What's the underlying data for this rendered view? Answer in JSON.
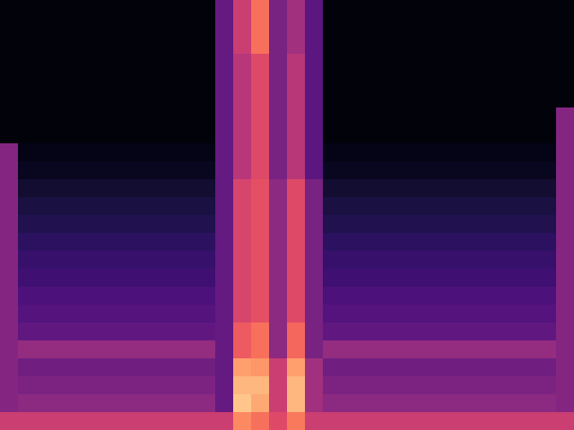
{
  "chart_data": {
    "type": "heatmap",
    "color": "magma",
    "tick_labels": false,
    "zlim": [
      0,
      100
    ],
    "cells": [
      [
        2,
        2,
        2,
        2,
        2,
        2,
        2,
        2,
        2,
        2,
        2,
        2,
        30,
        55,
        70,
        35,
        45,
        28,
        2,
        2,
        2,
        2,
        2,
        2,
        2,
        2,
        2,
        2,
        2,
        2,
        2,
        2
      ],
      [
        2,
        2,
        2,
        2,
        2,
        2,
        2,
        2,
        2,
        2,
        2,
        2,
        30,
        55,
        70,
        35,
        45,
        28,
        2,
        2,
        2,
        2,
        2,
        2,
        2,
        2,
        2,
        2,
        2,
        2,
        2,
        2
      ],
      [
        2,
        2,
        2,
        2,
        2,
        2,
        2,
        2,
        2,
        2,
        2,
        2,
        30,
        55,
        70,
        35,
        45,
        28,
        2,
        2,
        2,
        2,
        2,
        2,
        2,
        2,
        2,
        2,
        2,
        2,
        2,
        2
      ],
      [
        2,
        2,
        2,
        2,
        2,
        2,
        2,
        2,
        2,
        2,
        2,
        2,
        30,
        50,
        60,
        35,
        50,
        28,
        2,
        2,
        2,
        2,
        2,
        2,
        2,
        2,
        2,
        2,
        2,
        2,
        2,
        2
      ],
      [
        2,
        2,
        2,
        2,
        2,
        2,
        2,
        2,
        2,
        2,
        2,
        2,
        30,
        50,
        60,
        35,
        50,
        28,
        2,
        2,
        2,
        2,
        2,
        2,
        2,
        2,
        2,
        2,
        2,
        2,
        2,
        2
      ],
      [
        2,
        2,
        2,
        2,
        2,
        2,
        2,
        2,
        2,
        2,
        2,
        2,
        30,
        50,
        60,
        35,
        50,
        28,
        2,
        2,
        2,
        2,
        2,
        2,
        2,
        2,
        2,
        2,
        2,
        2,
        2,
        2
      ],
      [
        2,
        2,
        2,
        2,
        2,
        2,
        2,
        2,
        2,
        2,
        2,
        2,
        30,
        50,
        60,
        35,
        50,
        28,
        2,
        2,
        2,
        2,
        2,
        2,
        2,
        2,
        2,
        2,
        2,
        2,
        2,
        38
      ],
      [
        2,
        2,
        2,
        2,
        2,
        2,
        2,
        2,
        2,
        2,
        2,
        2,
        30,
        50,
        60,
        35,
        50,
        28,
        2,
        2,
        2,
        2,
        2,
        2,
        2,
        2,
        2,
        2,
        2,
        2,
        2,
        38
      ],
      [
        38,
        4,
        4,
        4,
        4,
        4,
        4,
        4,
        4,
        4,
        4,
        4,
        30,
        50,
        60,
        35,
        50,
        28,
        4,
        4,
        4,
        4,
        4,
        4,
        4,
        4,
        4,
        4,
        4,
        4,
        4,
        38
      ],
      [
        38,
        6,
        6,
        6,
        6,
        6,
        6,
        6,
        6,
        6,
        6,
        6,
        30,
        50,
        60,
        35,
        50,
        28,
        6,
        6,
        6,
        6,
        6,
        6,
        6,
        6,
        6,
        6,
        6,
        6,
        6,
        38
      ],
      [
        38,
        9,
        9,
        9,
        9,
        9,
        9,
        9,
        9,
        9,
        9,
        9,
        30,
        58,
        62,
        40,
        60,
        35,
        9,
        9,
        9,
        9,
        9,
        9,
        9,
        9,
        9,
        9,
        9,
        9,
        9,
        38
      ],
      [
        38,
        12,
        12,
        12,
        12,
        12,
        12,
        12,
        12,
        12,
        12,
        12,
        30,
        58,
        62,
        40,
        60,
        35,
        12,
        12,
        12,
        12,
        12,
        12,
        12,
        12,
        12,
        12,
        12,
        12,
        12,
        38
      ],
      [
        38,
        14,
        14,
        14,
        14,
        14,
        14,
        14,
        14,
        14,
        14,
        14,
        30,
        58,
        62,
        40,
        60,
        35,
        14,
        14,
        14,
        14,
        14,
        14,
        14,
        14,
        14,
        14,
        14,
        14,
        14,
        38
      ],
      [
        38,
        17,
        17,
        17,
        17,
        17,
        17,
        17,
        17,
        17,
        17,
        17,
        30,
        58,
        62,
        40,
        60,
        35,
        17,
        17,
        17,
        17,
        17,
        17,
        17,
        17,
        17,
        17,
        17,
        17,
        17,
        38
      ],
      [
        38,
        19,
        19,
        19,
        19,
        19,
        19,
        19,
        19,
        19,
        19,
        19,
        30,
        58,
        62,
        40,
        60,
        35,
        19,
        19,
        19,
        19,
        19,
        19,
        19,
        19,
        19,
        19,
        19,
        19,
        19,
        38
      ],
      [
        38,
        21,
        21,
        21,
        21,
        21,
        21,
        21,
        21,
        21,
        21,
        21,
        30,
        58,
        62,
        40,
        60,
        35,
        21,
        21,
        21,
        21,
        21,
        21,
        21,
        21,
        21,
        21,
        21,
        21,
        21,
        38
      ],
      [
        38,
        24,
        24,
        24,
        24,
        24,
        24,
        24,
        24,
        24,
        24,
        24,
        30,
        58,
        62,
        40,
        60,
        35,
        24,
        24,
        24,
        24,
        24,
        24,
        24,
        24,
        24,
        24,
        24,
        24,
        24,
        38
      ],
      [
        38,
        26,
        26,
        26,
        26,
        26,
        26,
        26,
        26,
        26,
        26,
        26,
        30,
        58,
        62,
        40,
        60,
        35,
        26,
        26,
        26,
        26,
        26,
        26,
        26,
        26,
        26,
        26,
        26,
        26,
        26,
        38
      ],
      [
        38,
        29,
        29,
        29,
        29,
        29,
        29,
        29,
        29,
        29,
        29,
        29,
        30,
        65,
        70,
        40,
        68,
        35,
        29,
        29,
        29,
        29,
        29,
        29,
        29,
        29,
        29,
        29,
        29,
        29,
        29,
        38
      ],
      [
        38,
        42,
        42,
        42,
        42,
        42,
        42,
        42,
        42,
        42,
        42,
        42,
        30,
        65,
        70,
        40,
        68,
        35,
        42,
        42,
        42,
        42,
        42,
        42,
        42,
        42,
        42,
        42,
        42,
        42,
        42,
        38
      ],
      [
        38,
        33,
        33,
        33,
        33,
        33,
        33,
        33,
        33,
        33,
        33,
        33,
        30,
        80,
        78,
        55,
        80,
        45,
        33,
        33,
        33,
        33,
        33,
        33,
        33,
        33,
        33,
        33,
        33,
        33,
        33,
        38
      ],
      [
        38,
        36,
        36,
        36,
        36,
        36,
        36,
        36,
        36,
        36,
        36,
        36,
        30,
        85,
        85,
        55,
        85,
        45,
        36,
        36,
        36,
        36,
        36,
        36,
        36,
        36,
        36,
        36,
        36,
        36,
        36,
        38
      ],
      [
        38,
        40,
        40,
        40,
        40,
        40,
        40,
        40,
        40,
        40,
        40,
        40,
        30,
        88,
        82,
        55,
        85,
        45,
        40,
        40,
        40,
        40,
        40,
        40,
        40,
        40,
        40,
        40,
        40,
        40,
        40,
        38
      ],
      [
        55,
        55,
        55,
        55,
        55,
        55,
        55,
        55,
        55,
        55,
        55,
        55,
        55,
        75,
        70,
        60,
        72,
        55,
        55,
        55,
        55,
        55,
        55,
        55,
        55,
        55,
        55,
        55,
        55,
        55,
        55,
        55
      ]
    ]
  }
}
